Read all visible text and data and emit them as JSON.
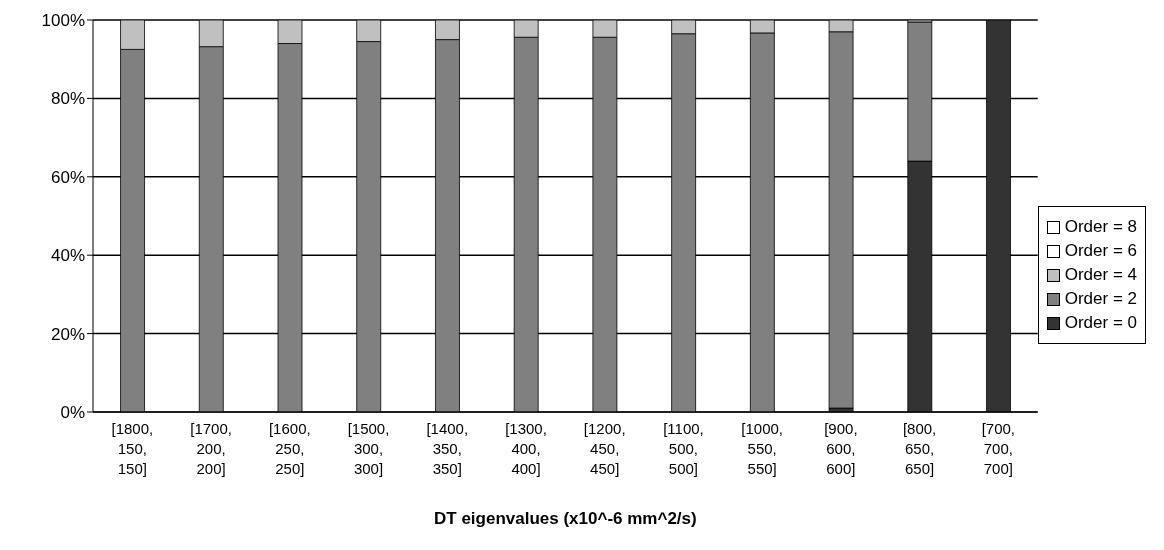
{
  "chart_data": {
    "type": "bar",
    "stacked": true,
    "xlabel": "DT eigenvalues (x10^-6 mm^2/s)",
    "categories": [
      "[1800, 150, 150]",
      "[1700, 200, 200]",
      "[1600, 250, 250]",
      "[1500, 300, 300]",
      "[1400, 350, 350]",
      "[1300, 400, 400]",
      "[1200, 450, 450]",
      "[1100, 500, 500]",
      "[1000, 550, 550]",
      "[900, 600, 600]",
      "[800, 650, 650]",
      "[700, 700, 700]"
    ],
    "series": [
      {
        "name": "Order = 0",
        "color": "#333333",
        "values": [
          0,
          0,
          0,
          0,
          0,
          0,
          0,
          0,
          0,
          1,
          64,
          100
        ]
      },
      {
        "name": "Order = 2",
        "color": "#808080",
        "values": [
          92.5,
          93.2,
          94,
          94.5,
          95,
          95.6,
          95.6,
          96.5,
          96.7,
          96,
          35.5,
          0
        ]
      },
      {
        "name": "Order = 4",
        "color": "#c0c0c0",
        "values": [
          7.5,
          6.8,
          6,
          5.5,
          5,
          4.4,
          4.4,
          3.5,
          3.3,
          3,
          0.5,
          0
        ]
      },
      {
        "name": "Order = 6",
        "color": "#ffffff",
        "values": [
          0,
          0,
          0,
          0,
          0,
          0,
          0,
          0,
          0,
          0,
          0,
          0
        ]
      },
      {
        "name": "Order = 8",
        "color": "#ffffff",
        "values": [
          0,
          0,
          0,
          0,
          0,
          0,
          0,
          0,
          0,
          0,
          0,
          0
        ]
      }
    ],
    "ylim": [
      0,
      100
    ],
    "yticks": [
      {
        "value": 0,
        "label": "0%"
      },
      {
        "value": 20,
        "label": "20%"
      },
      {
        "value": 40,
        "label": "40%"
      },
      {
        "value": 60,
        "label": "60%"
      },
      {
        "value": 80,
        "label": "80%"
      },
      {
        "value": 100,
        "label": "100%"
      }
    ],
    "grid": "y",
    "legend": "right"
  }
}
